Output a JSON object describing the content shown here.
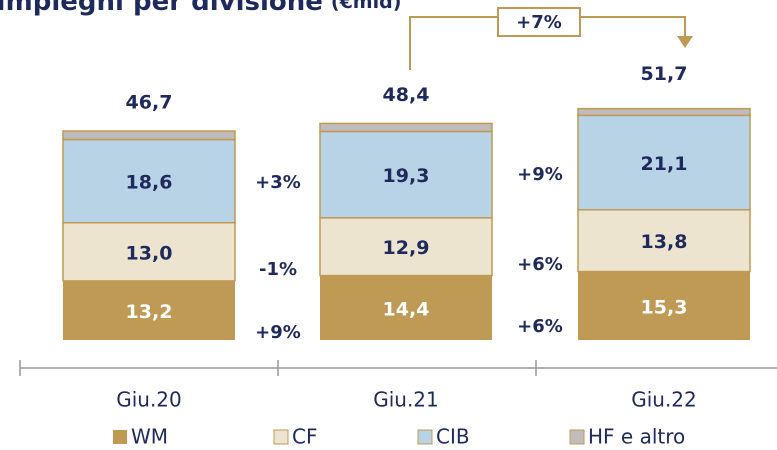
{
  "chart_data": {
    "type": "stacked_bar",
    "title": "Impieghi per divisione",
    "unit": "(€mld)",
    "categories": [
      "Giu.20",
      "Giu.21",
      "Giu.22"
    ],
    "ylim": [
      0,
      60
    ],
    "series": [
      {
        "name": "WM",
        "color": "#bf9a55",
        "values": [
          13.2,
          14.4,
          15.3
        ],
        "value_labels": [
          "13,2",
          "14,4",
          "15,3"
        ]
      },
      {
        "name": "CF",
        "color": "#ede4d0",
        "values": [
          13.0,
          12.9,
          13.8
        ],
        "value_labels": [
          "13,0",
          "12,9",
          "13,8"
        ]
      },
      {
        "name": "CIB",
        "color": "#b8d3e5",
        "values": [
          18.6,
          19.3,
          21.1
        ],
        "value_labels": [
          "18,6",
          "19,3",
          "21,1"
        ]
      },
      {
        "name": "HF e altro",
        "color": "#c0bcbc",
        "values": [
          1.9,
          1.8,
          1.5
        ]
      }
    ],
    "totals": [
      46.7,
      48.4,
      51.7
    ],
    "total_labels": [
      "46,7",
      "48,4",
      "51,7"
    ],
    "growth_labels": [
      [
        "+9%",
        "-1%",
        "+3%"
      ],
      [
        "+6%",
        "+6%",
        "+9%"
      ]
    ],
    "total_change_label": "+7%"
  }
}
